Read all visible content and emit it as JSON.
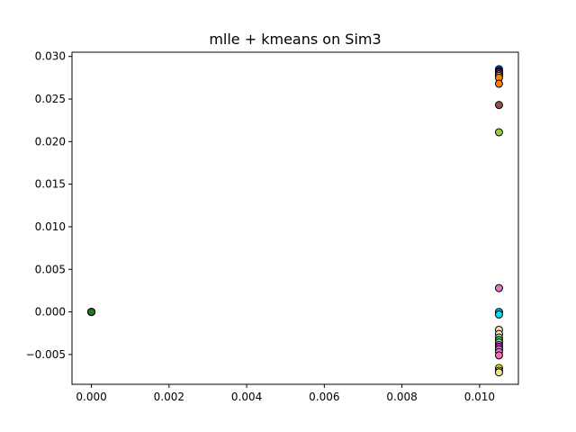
{
  "chart_data": {
    "type": "scatter",
    "title": "mlle + kmeans on Sim3",
    "xlabel": "",
    "ylabel": "",
    "xlim": [
      -0.0005,
      0.011
    ],
    "ylim": [
      -0.0085,
      0.0305
    ],
    "xticks": [
      0.0,
      0.002,
      0.004,
      0.006,
      0.008,
      0.01
    ],
    "yticks": [
      -0.005,
      0.0,
      0.005,
      0.01,
      0.015,
      0.02,
      0.025,
      0.03
    ],
    "xtick_labels": [
      "0.000",
      "0.002",
      "0.004",
      "0.006",
      "0.008",
      "0.010"
    ],
    "ytick_labels": [
      "−0.005",
      "0.000",
      "0.005",
      "0.010",
      "0.015",
      "0.020",
      "0.025",
      "0.030"
    ],
    "grid": false,
    "legend": "none",
    "points": [
      {
        "x": 0.0,
        "y": 0.0,
        "color": "#2ca02c"
      },
      {
        "x": 0.0,
        "y": 0.0,
        "color": "#bcbd22"
      },
      {
        "x": 0.0,
        "y": 0.0,
        "color": "#17a317"
      },
      {
        "x": 0.0,
        "y": 0.0,
        "color": "#1f7a1f"
      },
      {
        "x": 0.0105,
        "y": 0.0285,
        "color": "#1f77b4"
      },
      {
        "x": 0.0105,
        "y": 0.0283,
        "color": "#0000ff"
      },
      {
        "x": 0.0105,
        "y": 0.0281,
        "color": "#d62728"
      },
      {
        "x": 0.0105,
        "y": 0.0279,
        "color": "#9467bd"
      },
      {
        "x": 0.0105,
        "y": 0.0277,
        "color": "#ffd700"
      },
      {
        "x": 0.0105,
        "y": 0.0275,
        "color": "#ff7f0e"
      },
      {
        "x": 0.0105,
        "y": 0.0268,
        "color": "#ff7f0e"
      },
      {
        "x": 0.0105,
        "y": 0.0243,
        "color": "#8c564b"
      },
      {
        "x": 0.0105,
        "y": 0.0211,
        "color": "#9acd32"
      },
      {
        "x": 0.0105,
        "y": 0.0028,
        "color": "#e377c2"
      },
      {
        "x": 0.0105,
        "y": 0.0,
        "color": "#17becf"
      },
      {
        "x": 0.0105,
        "y": -0.0003,
        "color": "#00e5ff"
      },
      {
        "x": 0.0105,
        "y": -0.0021,
        "color": "#f5deb3"
      },
      {
        "x": 0.0105,
        "y": -0.0026,
        "color": "#ffe4c4"
      },
      {
        "x": 0.0105,
        "y": -0.003,
        "color": "#d3d3d3"
      },
      {
        "x": 0.0105,
        "y": -0.0033,
        "color": "#00ff00"
      },
      {
        "x": 0.0105,
        "y": -0.0036,
        "color": "#c0c0c0"
      },
      {
        "x": 0.0105,
        "y": -0.0039,
        "color": "#dda0dd"
      },
      {
        "x": 0.0105,
        "y": -0.0041,
        "color": "#ff00ff"
      },
      {
        "x": 0.0105,
        "y": -0.0044,
        "color": "#ee82ee"
      },
      {
        "x": 0.0105,
        "y": -0.0047,
        "color": "#e377c2"
      },
      {
        "x": 0.0105,
        "y": -0.0051,
        "color": "#ff69b4"
      },
      {
        "x": 0.0105,
        "y": -0.0066,
        "color": "#ffff00"
      },
      {
        "x": 0.0105,
        "y": -0.0069,
        "color": "#ffd700"
      },
      {
        "x": 0.0105,
        "y": -0.0071,
        "color": "#f0e68c"
      }
    ]
  }
}
